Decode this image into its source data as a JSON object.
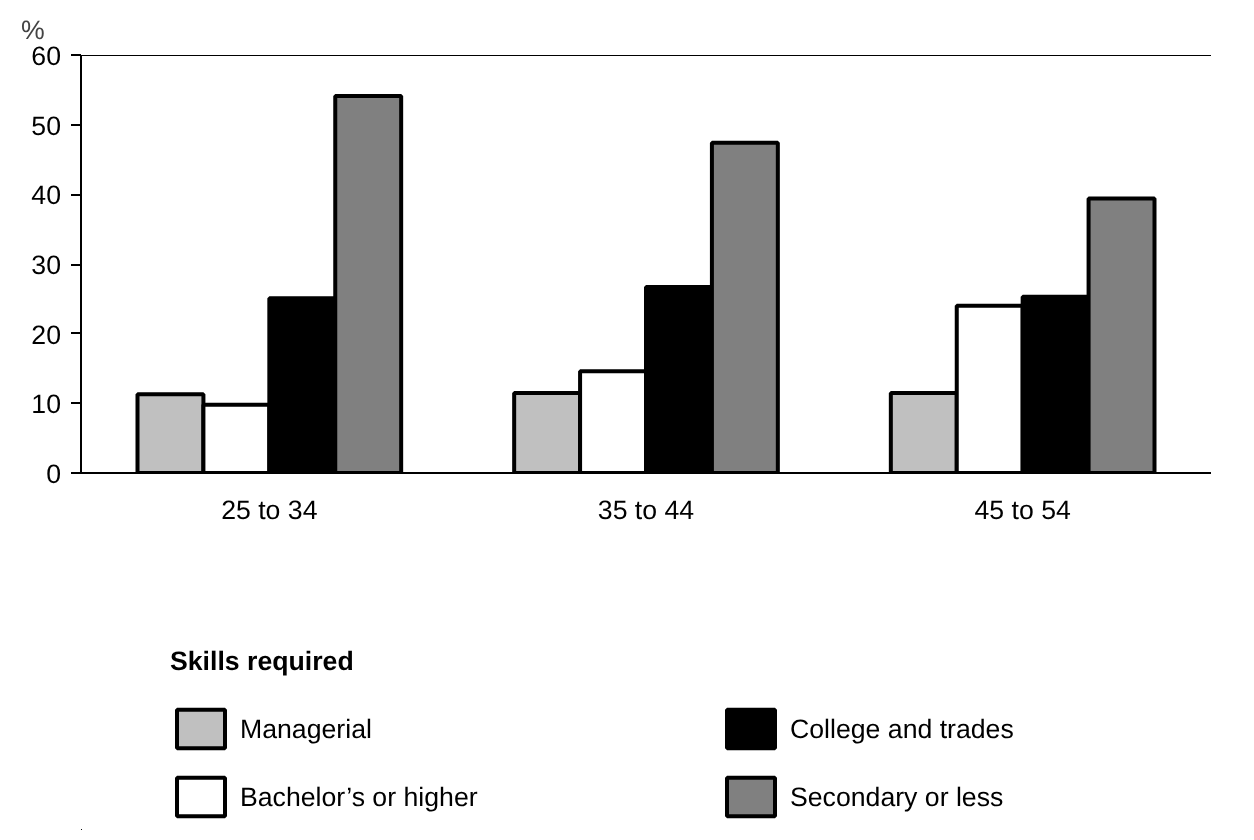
{
  "chart_data": {
    "type": "bar",
    "ylabel": "%",
    "legend_title": "Skills required",
    "categories": [
      "25 to 34",
      "35 to 44",
      "45 to 54"
    ],
    "ylim": [
      0,
      60
    ],
    "yticks": [
      0,
      10,
      20,
      30,
      40,
      50,
      60
    ],
    "grid": false,
    "legend": "bottom",
    "series": [
      {
        "name": "Managerial",
        "color": "#c0c0c0",
        "values": [
          11.3,
          11.5,
          11.5
        ]
      },
      {
        "name": "Bachelor’s or higher",
        "color": "#ffffff",
        "values": [
          9.8,
          14.6,
          24.0
        ]
      },
      {
        "name": "College and trades",
        "color": "#000000",
        "values": [
          25.1,
          26.7,
          25.3
        ]
      },
      {
        "name": "Secondary or less",
        "color": "#808080",
        "values": [
          54.1,
          47.4,
          39.4
        ]
      }
    ]
  }
}
